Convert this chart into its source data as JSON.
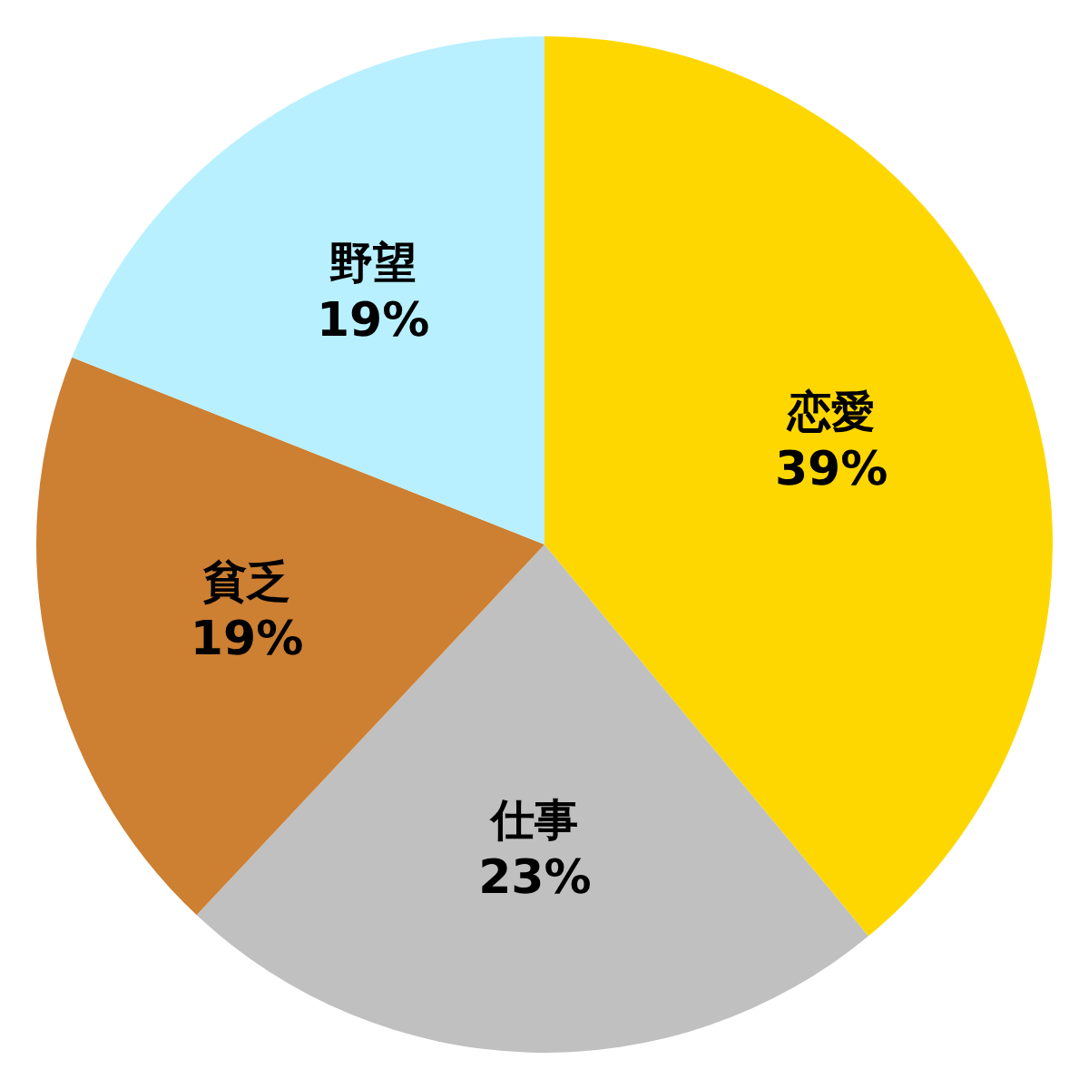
{
  "chart_data": {
    "type": "pie",
    "categories": [
      "恋愛",
      "仕事",
      "貧乏",
      "野望"
    ],
    "values": [
      39,
      23,
      19,
      19
    ],
    "value_labels": [
      "39%",
      "23%",
      "19%",
      "19%"
    ],
    "colors": [
      "#ffd700",
      "#c0c0c0",
      "#cd7f32",
      "#b8f0ff"
    ]
  }
}
